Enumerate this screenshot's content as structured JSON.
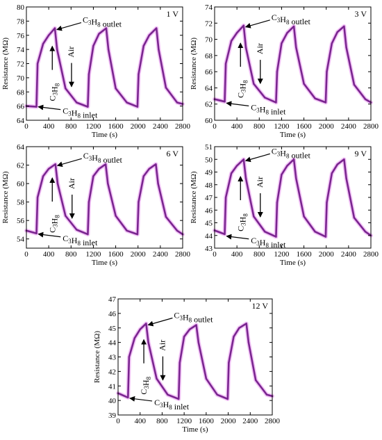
{
  "colors": {
    "curve": "#7a2590",
    "glow": "#f2c4f6",
    "axis": "#000000",
    "arrow": "#000000"
  },
  "chart_data": [
    {
      "type": "line",
      "voltage_label": "1 V",
      "xlabel": "Time (s)",
      "ylabel": "Resistance (MΩ)",
      "xlim": [
        0,
        2800
      ],
      "ylim": [
        64,
        80
      ],
      "xticks": [
        0,
        400,
        800,
        1200,
        1600,
        2000,
        2400,
        2800
      ],
      "yticks": [
        64,
        66,
        68,
        70,
        72,
        74,
        76,
        78,
        80
      ],
      "baseline": 66.0,
      "peak": 77.0,
      "peak_times": [
        510,
        1430,
        2330
      ],
      "inlet_times": [
        190,
        1100,
        1990
      ],
      "annotations": {
        "outlet": "C3H8 outlet",
        "inlet": "C3H8 inlet",
        "gas": "C3H8",
        "air": "Air"
      },
      "x": [
        0,
        180,
        200,
        300,
        400,
        510,
        550,
        700,
        900,
        1100,
        1120,
        1200,
        1300,
        1430,
        1470,
        1600,
        1800,
        1990,
        2010,
        2100,
        2200,
        2330,
        2370,
        2500,
        2700,
        2800
      ],
      "y": [
        66.0,
        65.9,
        72.0,
        74.8,
        76.0,
        77.0,
        74.0,
        68.5,
        66.5,
        65.9,
        70.5,
        74.5,
        76.2,
        77.0,
        74.0,
        68.5,
        66.5,
        65.9,
        70.5,
        74.5,
        76.0,
        77.0,
        74.0,
        68.6,
        66.5,
        66.3
      ]
    },
    {
      "type": "line",
      "voltage_label": "3 V",
      "xlabel": "Time (s)",
      "ylabel": "Resistance (MΩ)",
      "xlim": [
        0,
        2800
      ],
      "ylim": [
        60,
        74
      ],
      "xticks": [
        0,
        400,
        800,
        1200,
        1600,
        2000,
        2400,
        2800
      ],
      "yticks": [
        60,
        62,
        64,
        66,
        68,
        70,
        72,
        74
      ],
      "baseline": 62.2,
      "peak": 71.7,
      "peak_times": [
        520,
        1420,
        2320
      ],
      "inlet_times": [
        190,
        1100,
        1990
      ],
      "annotations": {
        "outlet": "C3H8 outlet",
        "inlet": "C3H8 inlet",
        "gas": "C3H8",
        "air": "Air"
      },
      "x": [
        0,
        180,
        200,
        300,
        400,
        520,
        560,
        700,
        900,
        1100,
        1120,
        1200,
        1300,
        1420,
        1460,
        1600,
        1800,
        1990,
        2010,
        2100,
        2200,
        2320,
        2360,
        2500,
        2700,
        2800
      ],
      "y": [
        62.6,
        62.3,
        67.0,
        69.8,
        70.8,
        71.7,
        69.0,
        64.5,
        62.8,
        62.2,
        66.0,
        69.5,
        70.8,
        71.6,
        69.0,
        64.5,
        62.7,
        62.2,
        66.0,
        69.5,
        70.9,
        71.6,
        69.0,
        64.4,
        62.6,
        62.2
      ]
    },
    {
      "type": "line",
      "voltage_label": "6 V",
      "xlabel": "Time (s)",
      "ylabel": "Resistance (MΩ)",
      "xlim": [
        0,
        2800
      ],
      "ylim": [
        53,
        64
      ],
      "xticks": [
        0,
        400,
        800,
        1200,
        1600,
        2000,
        2400,
        2800
      ],
      "yticks": [
        54,
        56,
        58,
        60,
        62,
        64
      ],
      "baseline": 54.6,
      "peak": 62.1,
      "peak_times": [
        520,
        1420,
        2320
      ],
      "inlet_times": [
        190,
        1100,
        1990
      ],
      "annotations": {
        "outlet": "C3H8 outlet",
        "inlet": "C3H8 inlet",
        "gas": "C3H8",
        "air": "Air"
      },
      "x": [
        0,
        180,
        200,
        300,
        400,
        520,
        560,
        700,
        900,
        1100,
        1120,
        1200,
        1300,
        1420,
        1460,
        1600,
        1800,
        1990,
        2010,
        2100,
        2200,
        2320,
        2360,
        2500,
        2700,
        2800
      ],
      "y": [
        54.9,
        54.6,
        58.5,
        60.8,
        61.6,
        62.1,
        60.0,
        56.5,
        55.0,
        54.5,
        58.0,
        60.8,
        61.6,
        62.1,
        60.0,
        56.5,
        54.9,
        54.5,
        58.0,
        60.8,
        61.6,
        62.1,
        60.0,
        56.4,
        54.9,
        54.5
      ]
    },
    {
      "type": "line",
      "voltage_label": "9 V",
      "xlabel": "Time (s)",
      "ylabel": "Resistance (MΩ)",
      "xlim": [
        0,
        2800
      ],
      "ylim": [
        43,
        51
      ],
      "xticks": [
        0,
        400,
        800,
        1200,
        1600,
        2000,
        2400,
        2800
      ],
      "yticks": [
        43,
        44,
        45,
        46,
        47,
        48,
        49,
        50,
        51
      ],
      "baseline": 44.0,
      "peak": 50.0,
      "peak_times": [
        520,
        1420,
        2320
      ],
      "inlet_times": [
        190,
        1100,
        1990
      ],
      "annotations": {
        "outlet": "C3H8 outlet",
        "inlet": "C3H8 inlet",
        "gas": "C3H8",
        "air": "Air"
      },
      "x": [
        0,
        180,
        200,
        300,
        400,
        520,
        560,
        700,
        900,
        1100,
        1120,
        1200,
        1300,
        1420,
        1460,
        1600,
        1800,
        1990,
        2010,
        2100,
        2200,
        2320,
        2360,
        2500,
        2700,
        2800
      ],
      "y": [
        44.4,
        44.1,
        47.0,
        48.9,
        49.5,
        50.0,
        48.5,
        45.5,
        44.3,
        43.9,
        46.6,
        48.8,
        49.5,
        50.0,
        48.5,
        45.5,
        44.3,
        43.9,
        46.6,
        48.9,
        49.6,
        50.0,
        48.5,
        45.4,
        44.3,
        44.0
      ]
    },
    {
      "type": "line",
      "voltage_label": "12 V",
      "xlabel": "Time (s)",
      "ylabel": "Resistance (MΩ)",
      "xlim": [
        0,
        2800
      ],
      "ylim": [
        39,
        47
      ],
      "xticks": [
        0,
        400,
        800,
        1200,
        1600,
        2000,
        2400,
        2800
      ],
      "yticks": [
        39,
        40,
        41,
        42,
        43,
        44,
        45,
        46,
        47
      ],
      "baseline": 40.2,
      "peak": 45.3,
      "peak_times": [
        510,
        1420,
        2330
      ],
      "inlet_times": [
        190,
        1100,
        1990
      ],
      "annotations": {
        "outlet": "C3H8 outlet",
        "inlet": "C3H8 inlet",
        "gas": "C3H8",
        "air": "Air"
      },
      "x": [
        0,
        180,
        200,
        300,
        400,
        510,
        550,
        700,
        900,
        1100,
        1120,
        1200,
        1300,
        1420,
        1460,
        1600,
        1800,
        1990,
        2010,
        2100,
        2200,
        2330,
        2370,
        2500,
        2700,
        2800
      ],
      "y": [
        40.5,
        40.2,
        43.0,
        44.3,
        44.9,
        45.3,
        44.0,
        41.5,
        40.4,
        40.1,
        42.6,
        44.4,
        44.9,
        45.2,
        44.0,
        41.5,
        40.4,
        40.1,
        42.6,
        44.4,
        45.0,
        45.3,
        44.0,
        41.4,
        40.4,
        40.3
      ]
    }
  ]
}
